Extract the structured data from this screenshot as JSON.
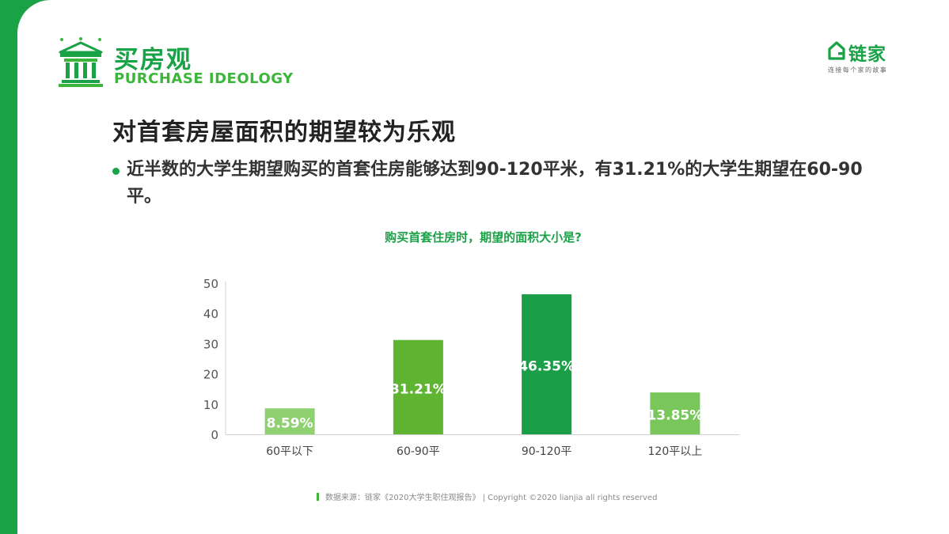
{
  "section": {
    "title_cn": "买房观",
    "title_en": "PURCHASE IDEOLOGY",
    "icon": "bank-building-icon"
  },
  "brand": {
    "name": "链家",
    "slogan": "连接每个家的故事",
    "icon": "house-logo-icon"
  },
  "heading": "对首套房屋面积的期望较为乐观",
  "bullet": "近半数的大学生期望购买的首套住房能够达到90-120平米，有31.21%的大学生期望在60-90平。",
  "chart_data": {
    "type": "bar",
    "title": "购买首套住房时，期望的面积大小是?",
    "categories": [
      "60平以下",
      "60-90平",
      "90-120平",
      "120平以上"
    ],
    "values": [
      8.59,
      31.21,
      46.35,
      13.85
    ],
    "data_labels": [
      "8.59%",
      "31.21%",
      "46.35%",
      "13.85%"
    ],
    "yticks": [
      0,
      10,
      20,
      30,
      40,
      50
    ],
    "ylim": [
      0,
      50
    ],
    "grid": false,
    "colors": [
      "#8fd071",
      "#5fb531",
      "#1b9e48",
      "#79c75b"
    ]
  },
  "footer": "数据来源：链家《2020大学生职住观报告》 | Copyright ©2020 lianjia all rights reserved",
  "colors": {
    "accent": "#1aa247",
    "accent_light": "#3cb63a",
    "text_dark": "#222222"
  }
}
